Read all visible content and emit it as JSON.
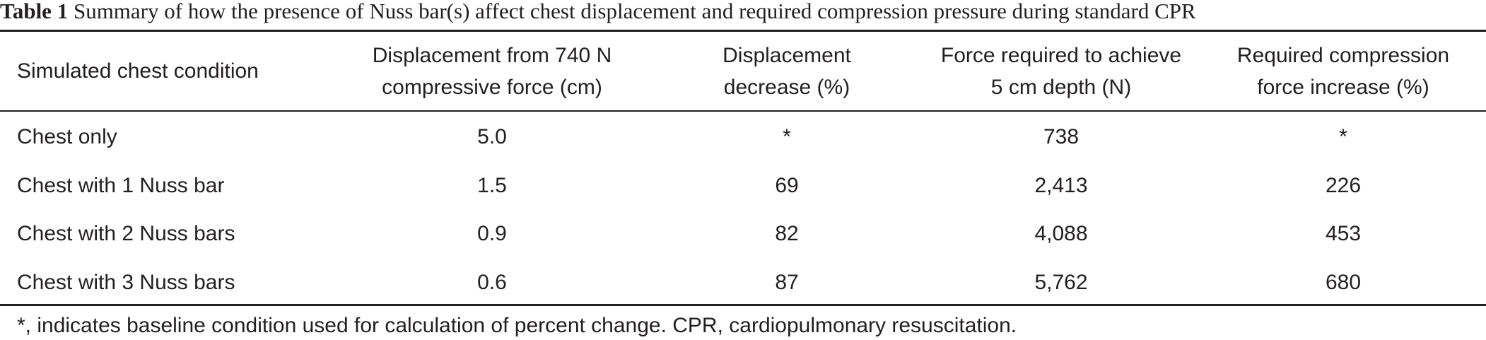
{
  "caption": {
    "label": "Table 1",
    "text": "Summary of how the presence of Nuss bar(s) affect chest displacement and required compression pressure during standard CPR"
  },
  "headers": [
    [
      "Simulated chest condition"
    ],
    [
      "Displacement from 740 N",
      "compressive force (cm)"
    ],
    [
      "Displacement",
      "decrease (%)"
    ],
    [
      "Force required to achieve",
      "5 cm depth (N)"
    ],
    [
      "Required compression",
      "force increase (%)"
    ]
  ],
  "rows": [
    [
      "Chest only",
      "5.0",
      "*",
      "738",
      "*"
    ],
    [
      "Chest with 1 Nuss bar",
      "1.5",
      "69",
      "2,413",
      "226"
    ],
    [
      "Chest with 2 Nuss bars",
      "0.9",
      "82",
      "4,088",
      "453"
    ],
    [
      "Chest with 3 Nuss bars",
      "0.6",
      "87",
      "5,762",
      "680"
    ]
  ],
  "footnote": "*, indicates baseline condition used for calculation of percent change. CPR, cardiopulmonary resuscitation."
}
